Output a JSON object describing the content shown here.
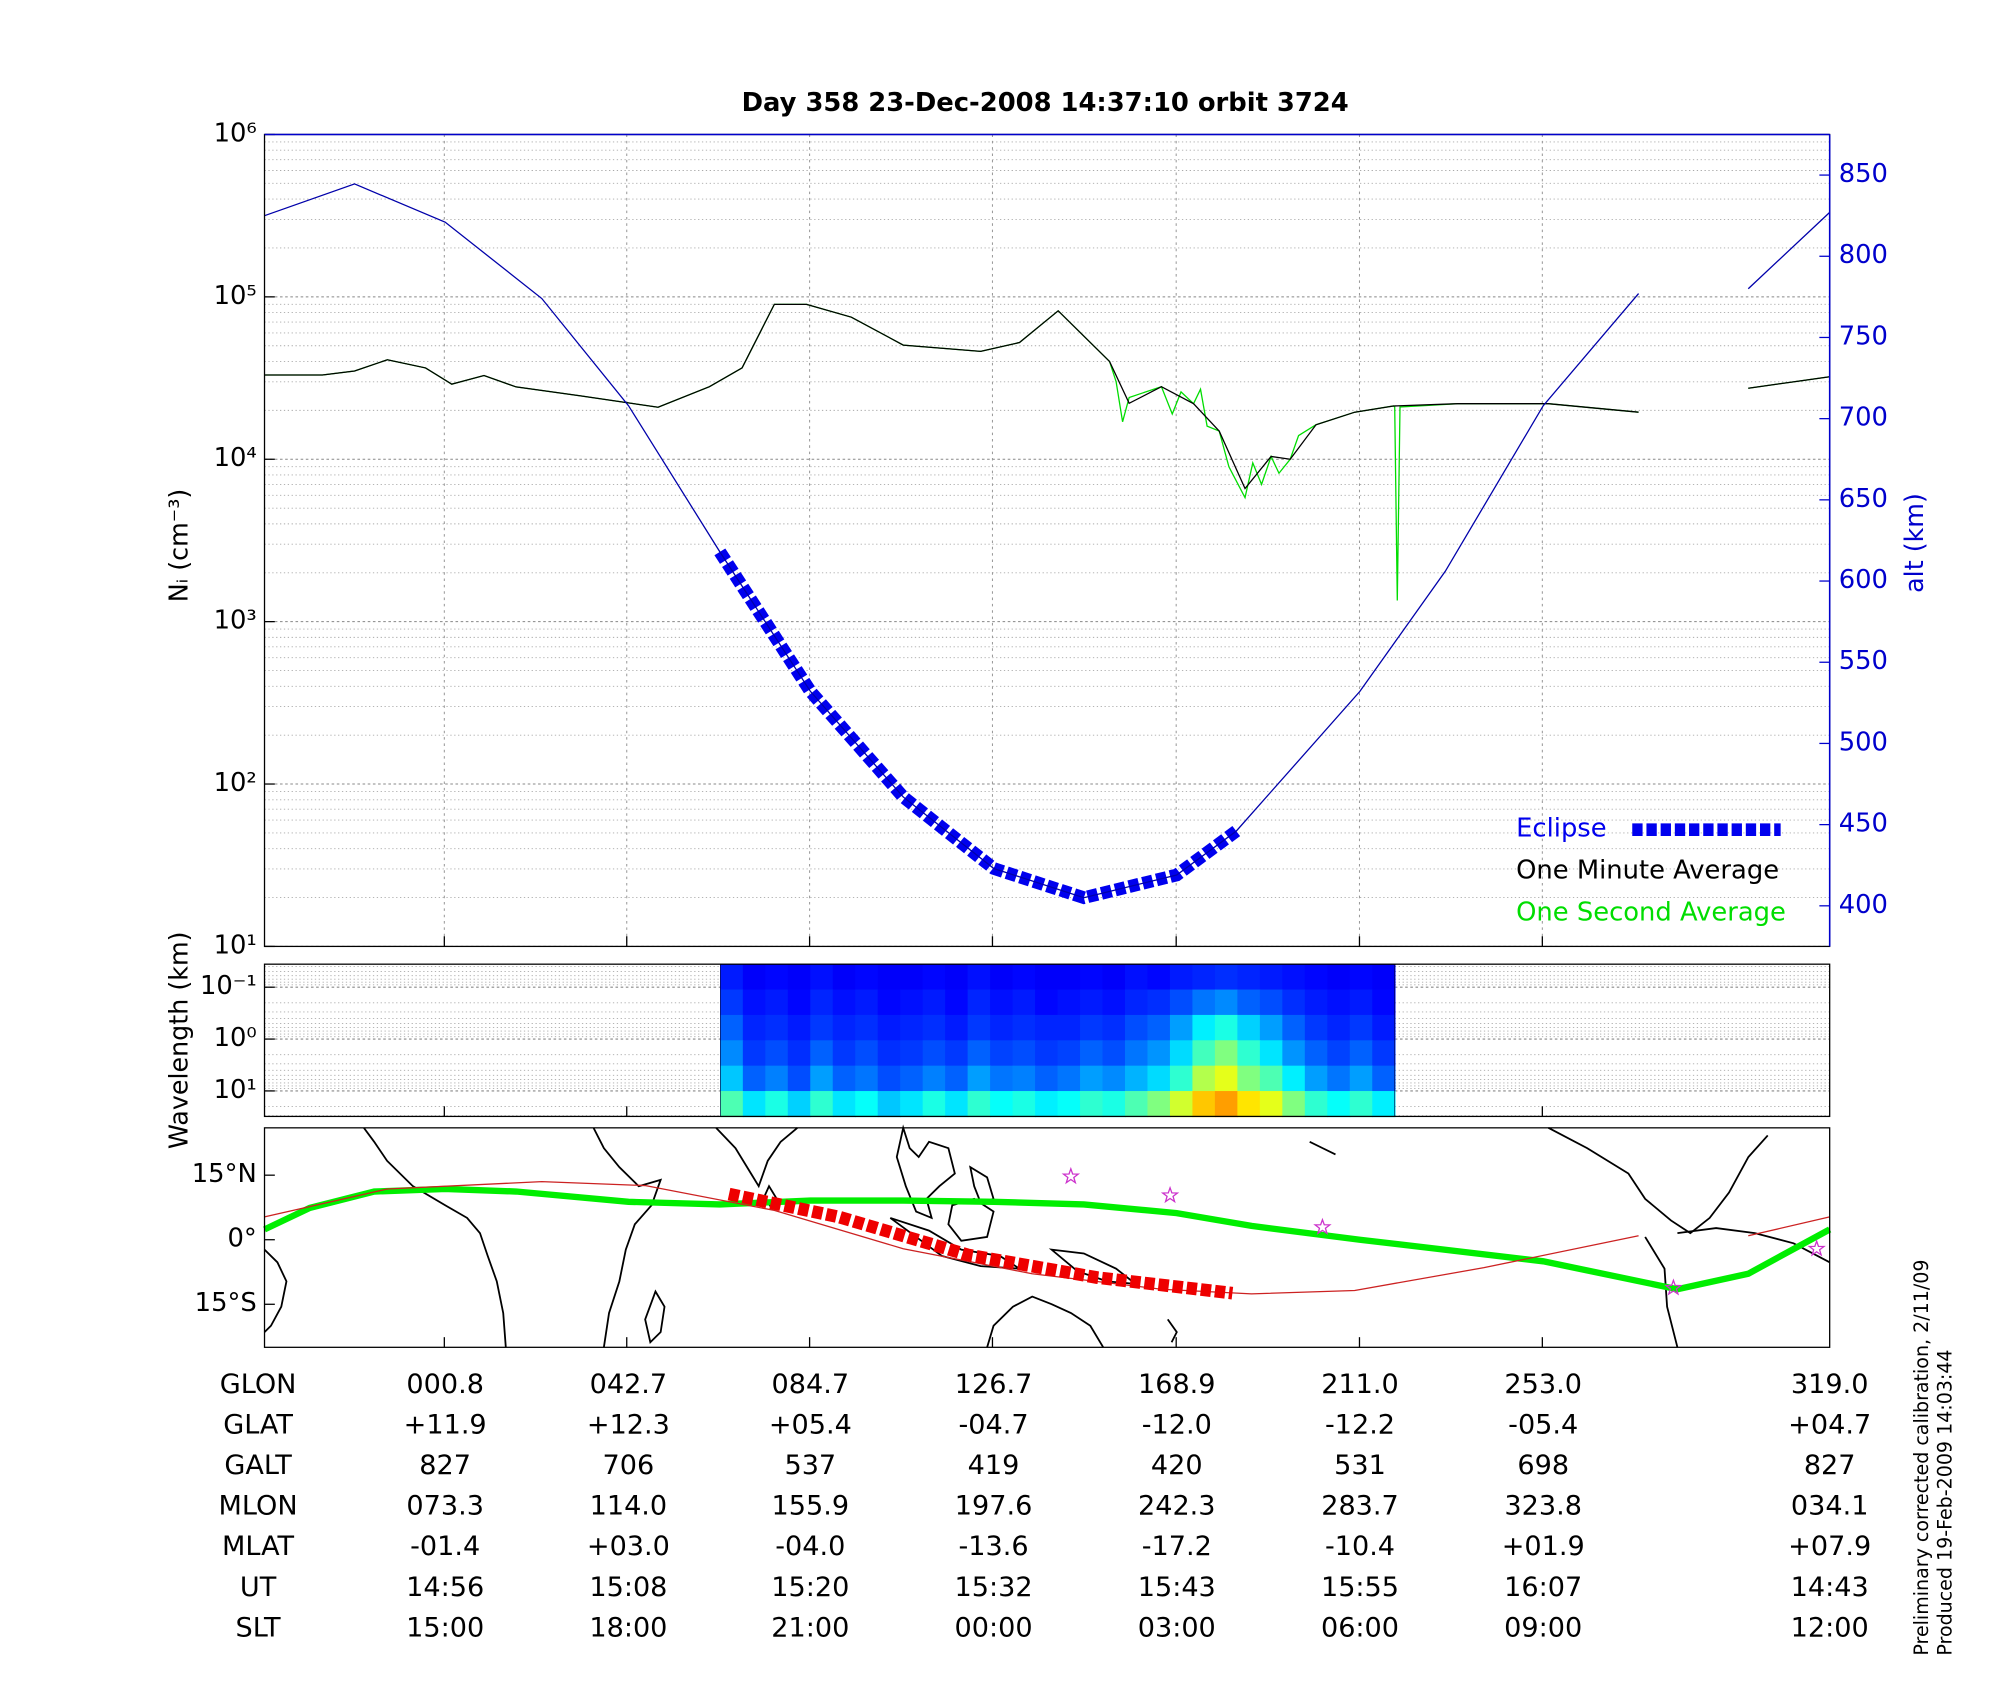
{
  "chart_data": [
    {
      "type": "line",
      "title": "Day 358  23-Dec-2008 14:37:10   orbit 3724",
      "ylabel": "Nᵢ (cm⁻³)",
      "y2label": "alt (km)",
      "xlim": [
        -40.5,
        319
      ],
      "xticks": [
        0.8,
        42.7,
        84.7,
        126.7,
        168.9,
        211.0,
        253.0
      ],
      "yscale": "log",
      "ylim": [
        10,
        1000000
      ],
      "yticks": [
        {
          "value": 10,
          "label": "10¹"
        },
        {
          "value": 100,
          "label": "10²"
        },
        {
          "value": 1000,
          "label": "10³"
        },
        {
          "value": 10000,
          "label": "10⁴"
        },
        {
          "value": 100000,
          "label": "10⁵"
        },
        {
          "value": 1000000,
          "label": "10⁶"
        }
      ],
      "yticks_minor": [
        20,
        30,
        40,
        50,
        60,
        70,
        80,
        90,
        200,
        300,
        400,
        500,
        600,
        700,
        800,
        900,
        2000,
        3000,
        4000,
        5000,
        6000,
        7000,
        8000,
        9000,
        20000,
        30000,
        40000,
        50000,
        60000,
        70000,
        80000,
        90000,
        200000,
        300000,
        400000,
        500000,
        600000,
        700000,
        800000,
        900000
      ],
      "y2lim": [
        375,
        875
      ],
      "y2ticks": [
        400,
        450,
        500,
        550,
        600,
        650,
        700,
        750,
        800,
        850
      ],
      "y2color": "#0000cc",
      "grid": true,
      "legend": "lower right",
      "series": [
        {
          "color": "#0000aa",
          "axis": "y2",
          "style": "thin",
          "x": [
            -40.5,
            -19.8,
            1.0,
            23.2,
            43.1,
            64.1,
            84.9,
            106.2,
            127.0,
            147.7,
            169.0,
            182.7,
            211.1,
            230.7,
            253.2,
            275.1,
            null,
            300.3,
            319.0
          ],
          "values": [
            825,
            844.5,
            821,
            774,
            708,
            618,
            532,
            467,
            423,
            405,
            419,
            446,
            532,
            606,
            708,
            777,
            null,
            780,
            827
          ]
        },
        {
          "name": "Eclipse",
          "color": "#0000ee",
          "axis": "y2",
          "style": "square-dash",
          "x": [
            64.1,
            84.9,
            106.2,
            127.0,
            147.7,
            169.0,
            182.7
          ],
          "values": [
            618,
            532,
            467,
            423,
            405,
            419,
            446
          ]
        },
        {
          "name": "One Minute Average",
          "color": "#000000",
          "style": "thin",
          "x": [
            -40.5,
            -27.2,
            -19.8,
            -12.3,
            -3.5,
            2.5,
            9.9,
            17.3,
            32.1,
            49.9,
            61.7,
            69.2,
            76.6,
            84.0,
            94.3,
            106.2,
            124.0,
            132.9,
            141.8,
            153.6,
            158.1,
            165.5,
            172.9,
            178.8,
            184.7,
            190.7,
            195.1,
            201.0,
            209.9,
            218.8,
            233.6,
            254.4,
            275.1,
            null,
            300.3,
            319.0
          ],
          "values": [
            33000,
            33000,
            35000,
            41000,
            36500,
            29000,
            32800,
            27900,
            24600,
            20900,
            28000,
            36500,
            90000,
            90000,
            75000,
            50500,
            46100,
            52300,
            82000,
            40000,
            22100,
            28000,
            22000,
            14900,
            6600,
            10400,
            10000,
            16300,
            19500,
            21300,
            22000,
            22000,
            19500,
            null,
            27400,
            32200
          ]
        },
        {
          "name": "One Second Average",
          "color": "#00dd00",
          "style": "thin",
          "x": [
            -40.5,
            -27.2,
            -19.8,
            -12.3,
            -3.5,
            2.5,
            9.9,
            17.3,
            32.1,
            49.9,
            61.7,
            69.2,
            76.6,
            84.0,
            94.3,
            106.2,
            124.0,
            132.9,
            141.8,
            153.6,
            155.1,
            156.6,
            158.1,
            165.5,
            168.0,
            170.0,
            172.9,
            174.5,
            176.0,
            178.8,
            181.0,
            184.7,
            186.5,
            188.5,
            190.7,
            192.5,
            195.1,
            197.0,
            201.0,
            209.9,
            218.8,
            219.1,
            219.7,
            220.3,
            233.6,
            254.4,
            275.1,
            null,
            300.3,
            319.0
          ],
          "values": [
            33000,
            33000,
            35000,
            41000,
            36500,
            29000,
            32800,
            27900,
            24600,
            20900,
            28000,
            36500,
            90000,
            90000,
            75000,
            50500,
            46100,
            52300,
            82000,
            40000,
            30000,
            17000,
            24000,
            28000,
            19000,
            26000,
            22000,
            27000,
            16000,
            14900,
            9000,
            5800,
            9500,
            7000,
            10400,
            8200,
            10000,
            14000,
            16300,
            19500,
            21300,
            21000,
            1350,
            21000,
            22000,
            22000,
            19500,
            null,
            27400,
            32200
          ]
        }
      ]
    },
    {
      "type": "spectrogram",
      "ylabel": "Wavelength (km)",
      "xlim": [
        -40.5,
        319
      ],
      "xticks": [
        0.8,
        42.7,
        84.7,
        126.7,
        168.9,
        211.0,
        253.0
      ],
      "yscale": "log",
      "invert": true,
      "ylim": [
        0.036,
        31
      ],
      "yticks": [
        {
          "value": 0.1,
          "label": "10⁻¹"
        },
        {
          "value": 1,
          "label": "10⁰"
        },
        {
          "value": 10,
          "label": "10¹"
        }
      ],
      "yticks_minor": [
        0.04,
        0.05,
        0.06,
        0.07,
        0.08,
        0.09,
        0.2,
        0.3,
        0.4,
        0.5,
        0.6,
        0.7,
        0.8,
        0.9,
        2,
        3,
        4,
        5,
        6,
        7,
        8,
        9,
        20,
        30
      ],
      "extent": [
        64.2,
        219.1
      ],
      "colormap": "jet",
      "intensity": [
        [
          0.15,
          0.12,
          0.13,
          0.12,
          0.14,
          0.12,
          0.13,
          0.12,
          0.12,
          0.13,
          0.12,
          0.14,
          0.12,
          0.13,
          0.12,
          0.12,
          0.13,
          0.12,
          0.14,
          0.13,
          0.15,
          0.16,
          0.17,
          0.16,
          0.15,
          0.14,
          0.13,
          0.12,
          0.13,
          0.12
        ],
        [
          0.18,
          0.14,
          0.15,
          0.13,
          0.16,
          0.14,
          0.15,
          0.13,
          0.14,
          0.15,
          0.13,
          0.16,
          0.14,
          0.15,
          0.13,
          0.14,
          0.15,
          0.14,
          0.16,
          0.17,
          0.2,
          0.24,
          0.26,
          0.22,
          0.2,
          0.17,
          0.15,
          0.14,
          0.15,
          0.13
        ],
        [
          0.22,
          0.16,
          0.17,
          0.15,
          0.18,
          0.16,
          0.17,
          0.15,
          0.16,
          0.17,
          0.15,
          0.18,
          0.16,
          0.17,
          0.16,
          0.16,
          0.18,
          0.17,
          0.2,
          0.22,
          0.28,
          0.36,
          0.4,
          0.33,
          0.28,
          0.22,
          0.18,
          0.16,
          0.18,
          0.15
        ],
        [
          0.26,
          0.18,
          0.2,
          0.17,
          0.22,
          0.18,
          0.2,
          0.17,
          0.18,
          0.2,
          0.18,
          0.22,
          0.19,
          0.2,
          0.18,
          0.19,
          0.22,
          0.2,
          0.24,
          0.27,
          0.34,
          0.44,
          0.5,
          0.42,
          0.35,
          0.27,
          0.22,
          0.19,
          0.22,
          0.18
        ],
        [
          0.32,
          0.22,
          0.25,
          0.2,
          0.28,
          0.22,
          0.24,
          0.2,
          0.22,
          0.25,
          0.22,
          0.28,
          0.24,
          0.25,
          0.22,
          0.24,
          0.28,
          0.26,
          0.3,
          0.34,
          0.42,
          0.55,
          0.6,
          0.5,
          0.45,
          0.36,
          0.28,
          0.24,
          0.28,
          0.22
        ],
        [
          0.45,
          0.35,
          0.4,
          0.33,
          0.42,
          0.35,
          0.38,
          0.32,
          0.35,
          0.4,
          0.35,
          0.42,
          0.38,
          0.4,
          0.36,
          0.38,
          0.42,
          0.4,
          0.45,
          0.5,
          0.58,
          0.68,
          0.72,
          0.65,
          0.6,
          0.5,
          0.42,
          0.38,
          0.42,
          0.36
        ]
      ]
    },
    {
      "type": "map",
      "xlim": [
        -40.5,
        319
      ],
      "xticks": [
        0.8,
        42.7,
        84.7,
        126.7,
        168.9,
        211.0,
        253.0
      ],
      "ylim": [
        -25,
        26
      ],
      "yticks": [
        {
          "value": 15,
          "label": "15°N"
        },
        {
          "value": 0,
          "label": "0°"
        },
        {
          "value": -15,
          "label": "15°S"
        }
      ],
      "series": [
        {
          "color": "#00ee00",
          "style": "thick",
          "x": [
            -40.5,
            -30.1,
            -15.3,
            1.0,
            17.3,
            43.1,
            64.1,
            84.9,
            106.2,
            127.0,
            147.7,
            169.0,
            186.2,
            211.1,
            253.2,
            284.0,
            300.3,
            319.0
          ],
          "values": [
            2.4,
            7.4,
            11.2,
            11.8,
            11.2,
            8.8,
            8.2,
            9.1,
            9.1,
            8.8,
            8.2,
            6.2,
            3.2,
            0,
            -5.0,
            -11.5,
            -7.9,
            2.4
          ]
        },
        {
          "color": "#cc2222",
          "style": "thin",
          "x": [
            -40.5,
            -12.3,
            23.2,
            46.9,
            76.6,
            106.2,
            135.8,
            165.5,
            186.2,
            209.9,
            239.6,
            275.1,
            null,
            300.3,
            319.0
          ],
          "values": [
            5.3,
            11.8,
            13.5,
            12.6,
            6.8,
            -2.1,
            -7.9,
            -11.5,
            -12.6,
            -11.8,
            -6.5,
            0.9,
            null,
            0.9,
            5.3
          ]
        },
        {
          "color": "#ee0000",
          "style": "square-dash",
          "x": [
            66.2,
            91.4,
            121.0,
            150.7,
            181.8
          ],
          "values": [
            10.6,
            5.3,
            -3.5,
            -8.8,
            -12.4
          ]
        }
      ],
      "points": {
        "color": "#cc33cc",
        "x": [
          144.7,
          167.5,
          202.5,
          283.1,
          316.0
        ],
        "values": [
          14.7,
          10.3,
          2.9,
          -11.2,
          -2.1
        ]
      }
    }
  ],
  "table": {
    "rows": [
      [
        "GLON",
        "000.8",
        "042.7",
        "084.7",
        "126.7",
        "168.9",
        "211.0",
        "253.0",
        "319.0"
      ],
      [
        "GLAT",
        "+11.9",
        "+12.3",
        "+05.4",
        "-04.7",
        "-12.0",
        "-12.2",
        "-05.4",
        "+04.7"
      ],
      [
        "GALT",
        "827",
        "706",
        "537",
        "419",
        "420",
        "531",
        "698",
        "827"
      ],
      [
        "MLON",
        "073.3",
        "114.0",
        "155.9",
        "197.6",
        "242.3",
        "283.7",
        "323.8",
        "034.1"
      ],
      [
        "MLAT",
        "-01.4",
        "+03.0",
        "-04.0",
        "-13.6",
        "-17.2",
        "-10.4",
        "+01.9",
        "+07.9"
      ],
      [
        "UT",
        "14:56",
        "15:08",
        "15:20",
        "15:32",
        "15:43",
        "15:55",
        "16:07",
        "14:43"
      ],
      [
        "SLT",
        "15:00",
        "18:00",
        "21:00",
        "00:00",
        "03:00",
        "06:00",
        "09:00",
        "12:00"
      ]
    ]
  },
  "notes": [
    "Preliminary corrected calibration, 2/11/09",
    "Produced 19-Feb-2009 14:03:44"
  ]
}
